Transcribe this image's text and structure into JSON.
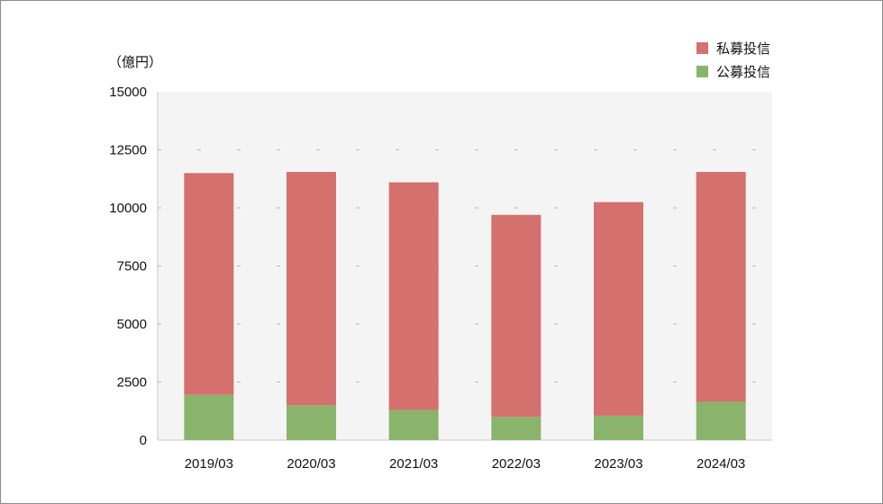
{
  "chart_data": {
    "type": "bar",
    "stacked": true,
    "unit_label": "（億円）",
    "categories": [
      "2019/03",
      "2020/03",
      "2021/03",
      "2022/03",
      "2023/03",
      "2024/03"
    ],
    "series": [
      {
        "name": "公募投信",
        "color": "#8ab46b",
        "values": [
          1950,
          1500,
          1300,
          1000,
          1050,
          1650
        ]
      },
      {
        "name": "私募投信",
        "color": "#d4706e",
        "values": [
          9550,
          10050,
          9800,
          8700,
          9200,
          9900
        ]
      }
    ],
    "legend": [
      {
        "name": "私募投信",
        "color": "#d4706e"
      },
      {
        "name": "公募投信",
        "color": "#8ab46b"
      }
    ],
    "legend_position": "top-right",
    "ylim": [
      0,
      15000
    ],
    "yticks": [
      "15000",
      "12500",
      "10000",
      "7500",
      "5000",
      "2500",
      "0"
    ],
    "ytick_values": [
      15000,
      12500,
      10000,
      7500,
      5000,
      2500,
      0
    ],
    "grid": true,
    "plot_background": "#f4f4f4"
  }
}
